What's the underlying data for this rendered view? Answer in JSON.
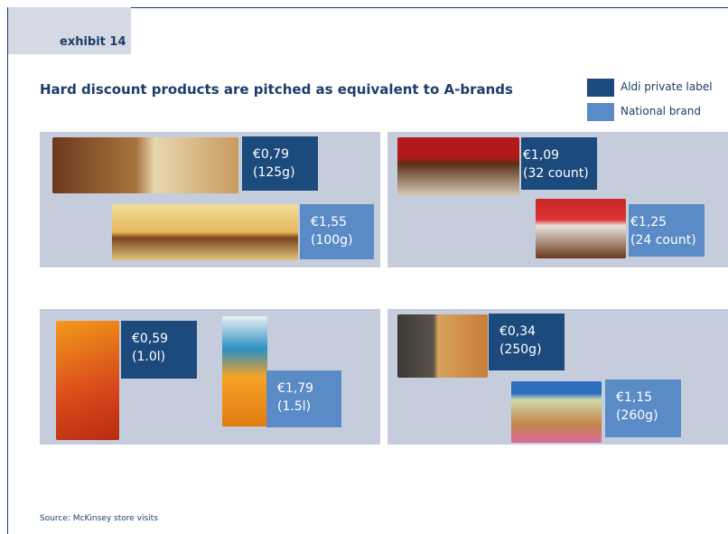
{
  "header": {
    "exhibit": "exhibit 14",
    "title": "Hard discount products are pitched as equivalent to A-brands"
  },
  "legend": [
    {
      "label": "Aldi private label"
    },
    {
      "label": "National brand"
    }
  ],
  "panels": [
    {
      "products": [
        {
          "price": "€0,79",
          "size": "(125g)"
        },
        {
          "price": "€1,55",
          "size": "(100g)"
        }
      ]
    },
    {
      "products": [
        {
          "price": "€1,09",
          "size": "(32 count)"
        },
        {
          "price": "€1,25",
          "size": "(24 count)"
        }
      ]
    },
    {
      "products": [
        {
          "price": "€0,59",
          "size": "(1.0l)"
        },
        {
          "price": "€1,79",
          "size": "(1.5l)"
        }
      ]
    },
    {
      "products": [
        {
          "price": "€0,34",
          "size": "(250g)"
        },
        {
          "price": "€1,15",
          "size": "(260g)"
        }
      ]
    }
  ],
  "footer": {
    "source": "Source: McKinsey store visits"
  }
}
